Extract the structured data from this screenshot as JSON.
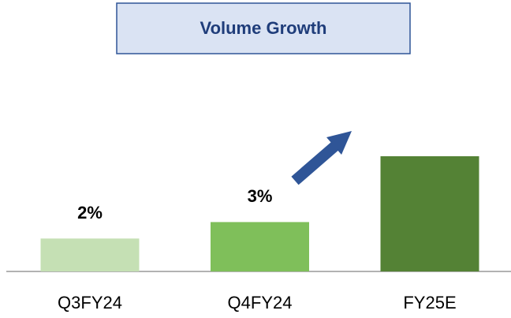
{
  "chart_data": {
    "type": "bar",
    "title": "Volume Growth",
    "categories": [
      "Q3FY24",
      "Q4FY24",
      "FY25E"
    ],
    "values": [
      2,
      3,
      7
    ],
    "value_labels": [
      "2%",
      "3%",
      null
    ],
    "colors": [
      "#c5e0b4",
      "#7fbf5a",
      "#548235"
    ]
  }
}
